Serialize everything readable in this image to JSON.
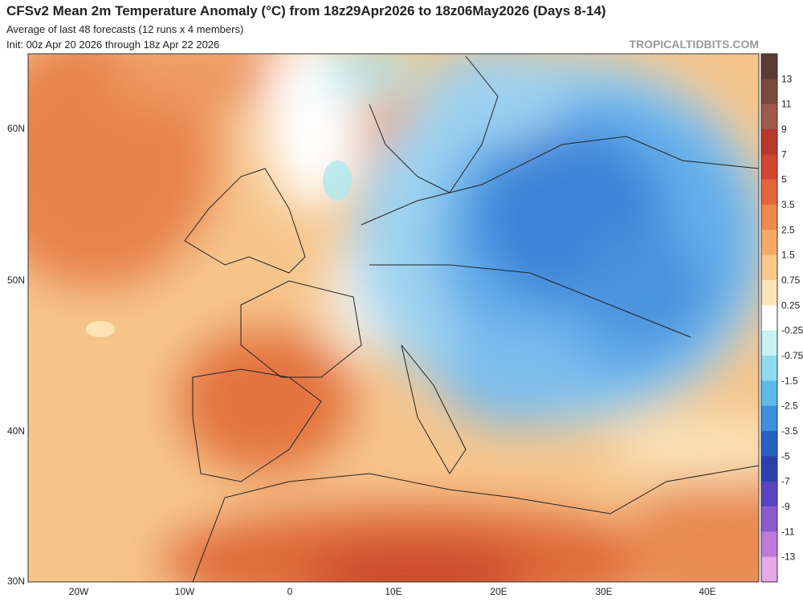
{
  "header": {
    "title": "CFSv2 Mean 2m Temperature Anomaly (°C) from 18z29Apr2026 to 18z06May2026 (Days 8-14)",
    "subtitle": "Average of last 48 forecasts (12 runs x 4 members)",
    "init": "Init: 00z Apr 20 2026 through 18z Apr 22 2026",
    "watermark": "TROPICALTIDBITS.COM"
  },
  "map": {
    "lat_labels": [
      "60N",
      "50N",
      "40N",
      "30N"
    ],
    "lon_labels": [
      "20W",
      "10W",
      "0",
      "10E",
      "20E",
      "30E",
      "40E"
    ]
  },
  "colorbar": {
    "labels": [
      "13",
      "11",
      "9",
      "7",
      "5",
      "3.5",
      "2.5",
      "1.5",
      "0.75",
      "0.25",
      "-0.25",
      "-0.75",
      "-1.5",
      "-2.5",
      "-3.5",
      "-5",
      "-7",
      "-9",
      "-11",
      "-13"
    ]
  }
}
